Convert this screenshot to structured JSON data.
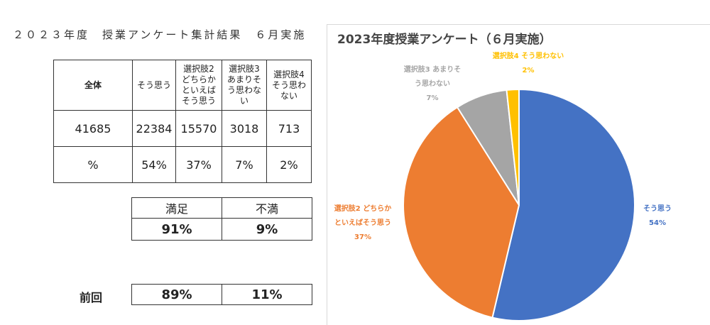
{
  "page_title": "２０２３年度　授業アンケート集計結果　６月実施",
  "table": {
    "headers": [
      "全体",
      "そう思う",
      "選択肢2 どちらか といえば そう思う",
      "選択肢3 あまりそ う思わな い",
      "選択肢4 そう思わ ない"
    ],
    "header_lines": [
      [
        "全体"
      ],
      [
        "そう思う"
      ],
      [
        "選択肢2",
        "どちらか",
        "といえば",
        "そう思う"
      ],
      [
        "選択肢3",
        "あまりそ",
        "う思わな",
        "い"
      ],
      [
        "選択肢4",
        "そう思わ",
        "ない"
      ]
    ],
    "counts": [
      "41685",
      "22384",
      "15570",
      "3018",
      "713"
    ],
    "percents": [
      "%",
      "54%",
      "37%",
      "7%",
      "2%"
    ]
  },
  "satisfaction": {
    "labels": [
      "満足",
      "不満"
    ],
    "values": [
      "91%",
      "9%"
    ]
  },
  "previous": {
    "label": "前回",
    "values": [
      "89%",
      "11%"
    ]
  },
  "chart_data": {
    "type": "pie",
    "title": "2023年度授業アンケート（６月実施）",
    "slices": [
      {
        "name": "そう思う",
        "value": 22384,
        "percent_label": "54%",
        "color": "#4472c4",
        "label_lines": [
          "そう思う",
          "54%"
        ]
      },
      {
        "name": "選択肢2 どちらかといえばそう思う",
        "value": 15570,
        "percent_label": "37%",
        "color": "#ed7d31",
        "label_lines": [
          "選択肢2 どちらか",
          "といえばそう思う",
          "37%"
        ]
      },
      {
        "name": "選択肢3 あまりそう思わない",
        "value": 3018,
        "percent_label": "7%",
        "color": "#a5a5a5",
        "label_lines": [
          "選択肢3 あまりそ",
          "う思わない",
          "7%"
        ]
      },
      {
        "name": "選択肢4 そう思わない",
        "value": 713,
        "percent_label": "2%",
        "color": "#ffc000",
        "label_lines": [
          "選択肢4 そう思わない",
          "2%"
        ]
      }
    ],
    "start_angle": "12 o'clock",
    "direction": "clockwise"
  }
}
